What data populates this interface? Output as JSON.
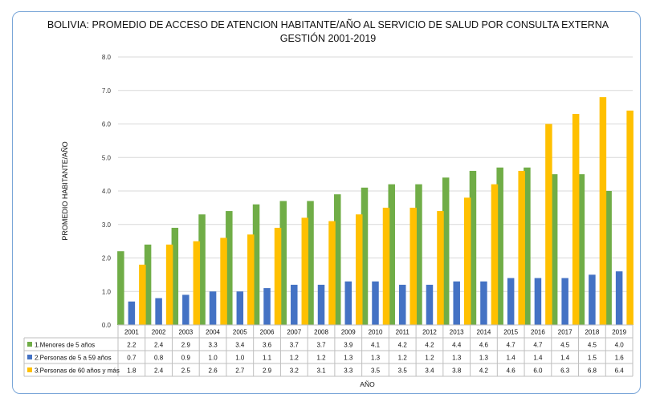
{
  "chart_data": {
    "type": "bar",
    "title": "BOLIVIA: PROMEDIO DE ACCESO DE ATENCION HABITANTE/AÑO AL SERVICIO DE SALUD POR CONSULTA EXTERNA",
    "subtitle": "GESTIÓN 2001-2019",
    "xlabel": "AÑO",
    "ylabel": "PROMEDIO HABITANTE/AÑO",
    "ylim": [
      0,
      8
    ],
    "yticks": [
      "0.0",
      "1.0",
      "2.0",
      "3.0",
      "4.0",
      "5.0",
      "6.0",
      "7.0",
      "8.0"
    ],
    "grid": true,
    "legend": "data-table",
    "categories": [
      "2001",
      "2002",
      "2003",
      "2004",
      "2005",
      "2006",
      "2007",
      "2008",
      "2009",
      "2010",
      "2011",
      "2012",
      "2013",
      "2014",
      "2015",
      "2016",
      "2017",
      "2018",
      "2019"
    ],
    "series": [
      {
        "name": "1.Menores de 5 años",
        "color": "#70ad47",
        "values": [
          2.2,
          2.4,
          2.9,
          3.3,
          3.4,
          3.6,
          3.7,
          3.7,
          3.9,
          4.1,
          4.2,
          4.2,
          4.4,
          4.6,
          4.7,
          4.7,
          4.5,
          4.5,
          4.0
        ],
        "labels": [
          "2.2",
          "2.4",
          "2.9",
          "3.3",
          "3.4",
          "3.6",
          "3.7",
          "3.7",
          "3.9",
          "4.1",
          "4.2",
          "4.2",
          "4.4",
          "4.6",
          "4.7",
          "4.7",
          "4.5",
          "4.5",
          "4.0"
        ]
      },
      {
        "name": "2.Personas de 5 a 59 años",
        "color": "#4472c4",
        "values": [
          0.7,
          0.8,
          0.9,
          1.0,
          1.0,
          1.1,
          1.2,
          1.2,
          1.3,
          1.3,
          1.2,
          1.2,
          1.3,
          1.3,
          1.4,
          1.4,
          1.4,
          1.5,
          1.6
        ],
        "labels": [
          "0.7",
          "0.8",
          "0.9",
          "1.0",
          "1.0",
          "1.1",
          "1.2",
          "1.2",
          "1.3",
          "1.3",
          "1.2",
          "1.2",
          "1.3",
          "1.3",
          "1.4",
          "1.4",
          "1.4",
          "1.5",
          "1.6"
        ]
      },
      {
        "name": "3.Personas de 60 años y más",
        "color": "#ffc000",
        "values": [
          1.8,
          2.4,
          2.5,
          2.6,
          2.7,
          2.9,
          3.2,
          3.1,
          3.3,
          3.5,
          3.5,
          3.4,
          3.8,
          4.2,
          4.6,
          6.0,
          6.3,
          6.8,
          6.4
        ],
        "labels": [
          "1.8",
          "2.4",
          "2.5",
          "2.6",
          "2.7",
          "2.9",
          "3.2",
          "3.1",
          "3.3",
          "3.5",
          "3.5",
          "3.4",
          "3.8",
          "4.2",
          "4.6",
          "6.0",
          "6.3",
          "6.8",
          "6.4"
        ]
      }
    ]
  }
}
